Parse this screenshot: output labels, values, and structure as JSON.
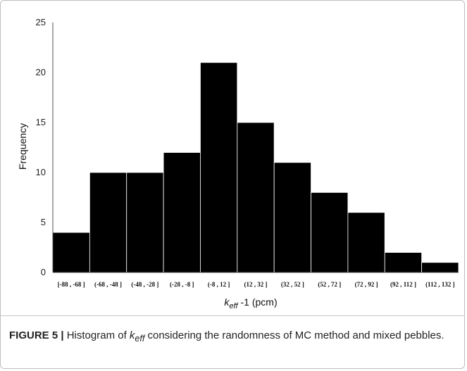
{
  "chart_data": {
    "type": "bar",
    "categories": [
      "[-88 , -68 ]",
      "(-68 , -48 ]",
      "(-48 , -28 ]",
      "(-28 , -8 ]",
      "(-8 , 12 ]",
      "(12 , 32 ]",
      "(32 , 52 ]",
      "(52 , 72 ]",
      "(72 , 92 ]",
      "(92 , 112 ]",
      "(112 , 132 ]"
    ],
    "values": [
      4,
      10,
      10,
      12,
      21,
      15,
      11,
      8,
      6,
      2,
      1
    ],
    "ylabel": "Frequency",
    "xlabel_base": "k",
    "xlabel_sub": "eff",
    "xlabel_rest": " -1 (pcm)",
    "ylim": [
      0,
      25
    ],
    "yticks": [
      0,
      5,
      10,
      15,
      20,
      25
    ],
    "bar_color": "#000000",
    "bar_edge_color": "#ffffff"
  },
  "caption": {
    "label": "FIGURE 5 |",
    "text_pre": " Histogram of ",
    "k_base": "k",
    "k_sub": "eff",
    "text_post": " considering the randomness of MC method and mixed pebbles."
  }
}
